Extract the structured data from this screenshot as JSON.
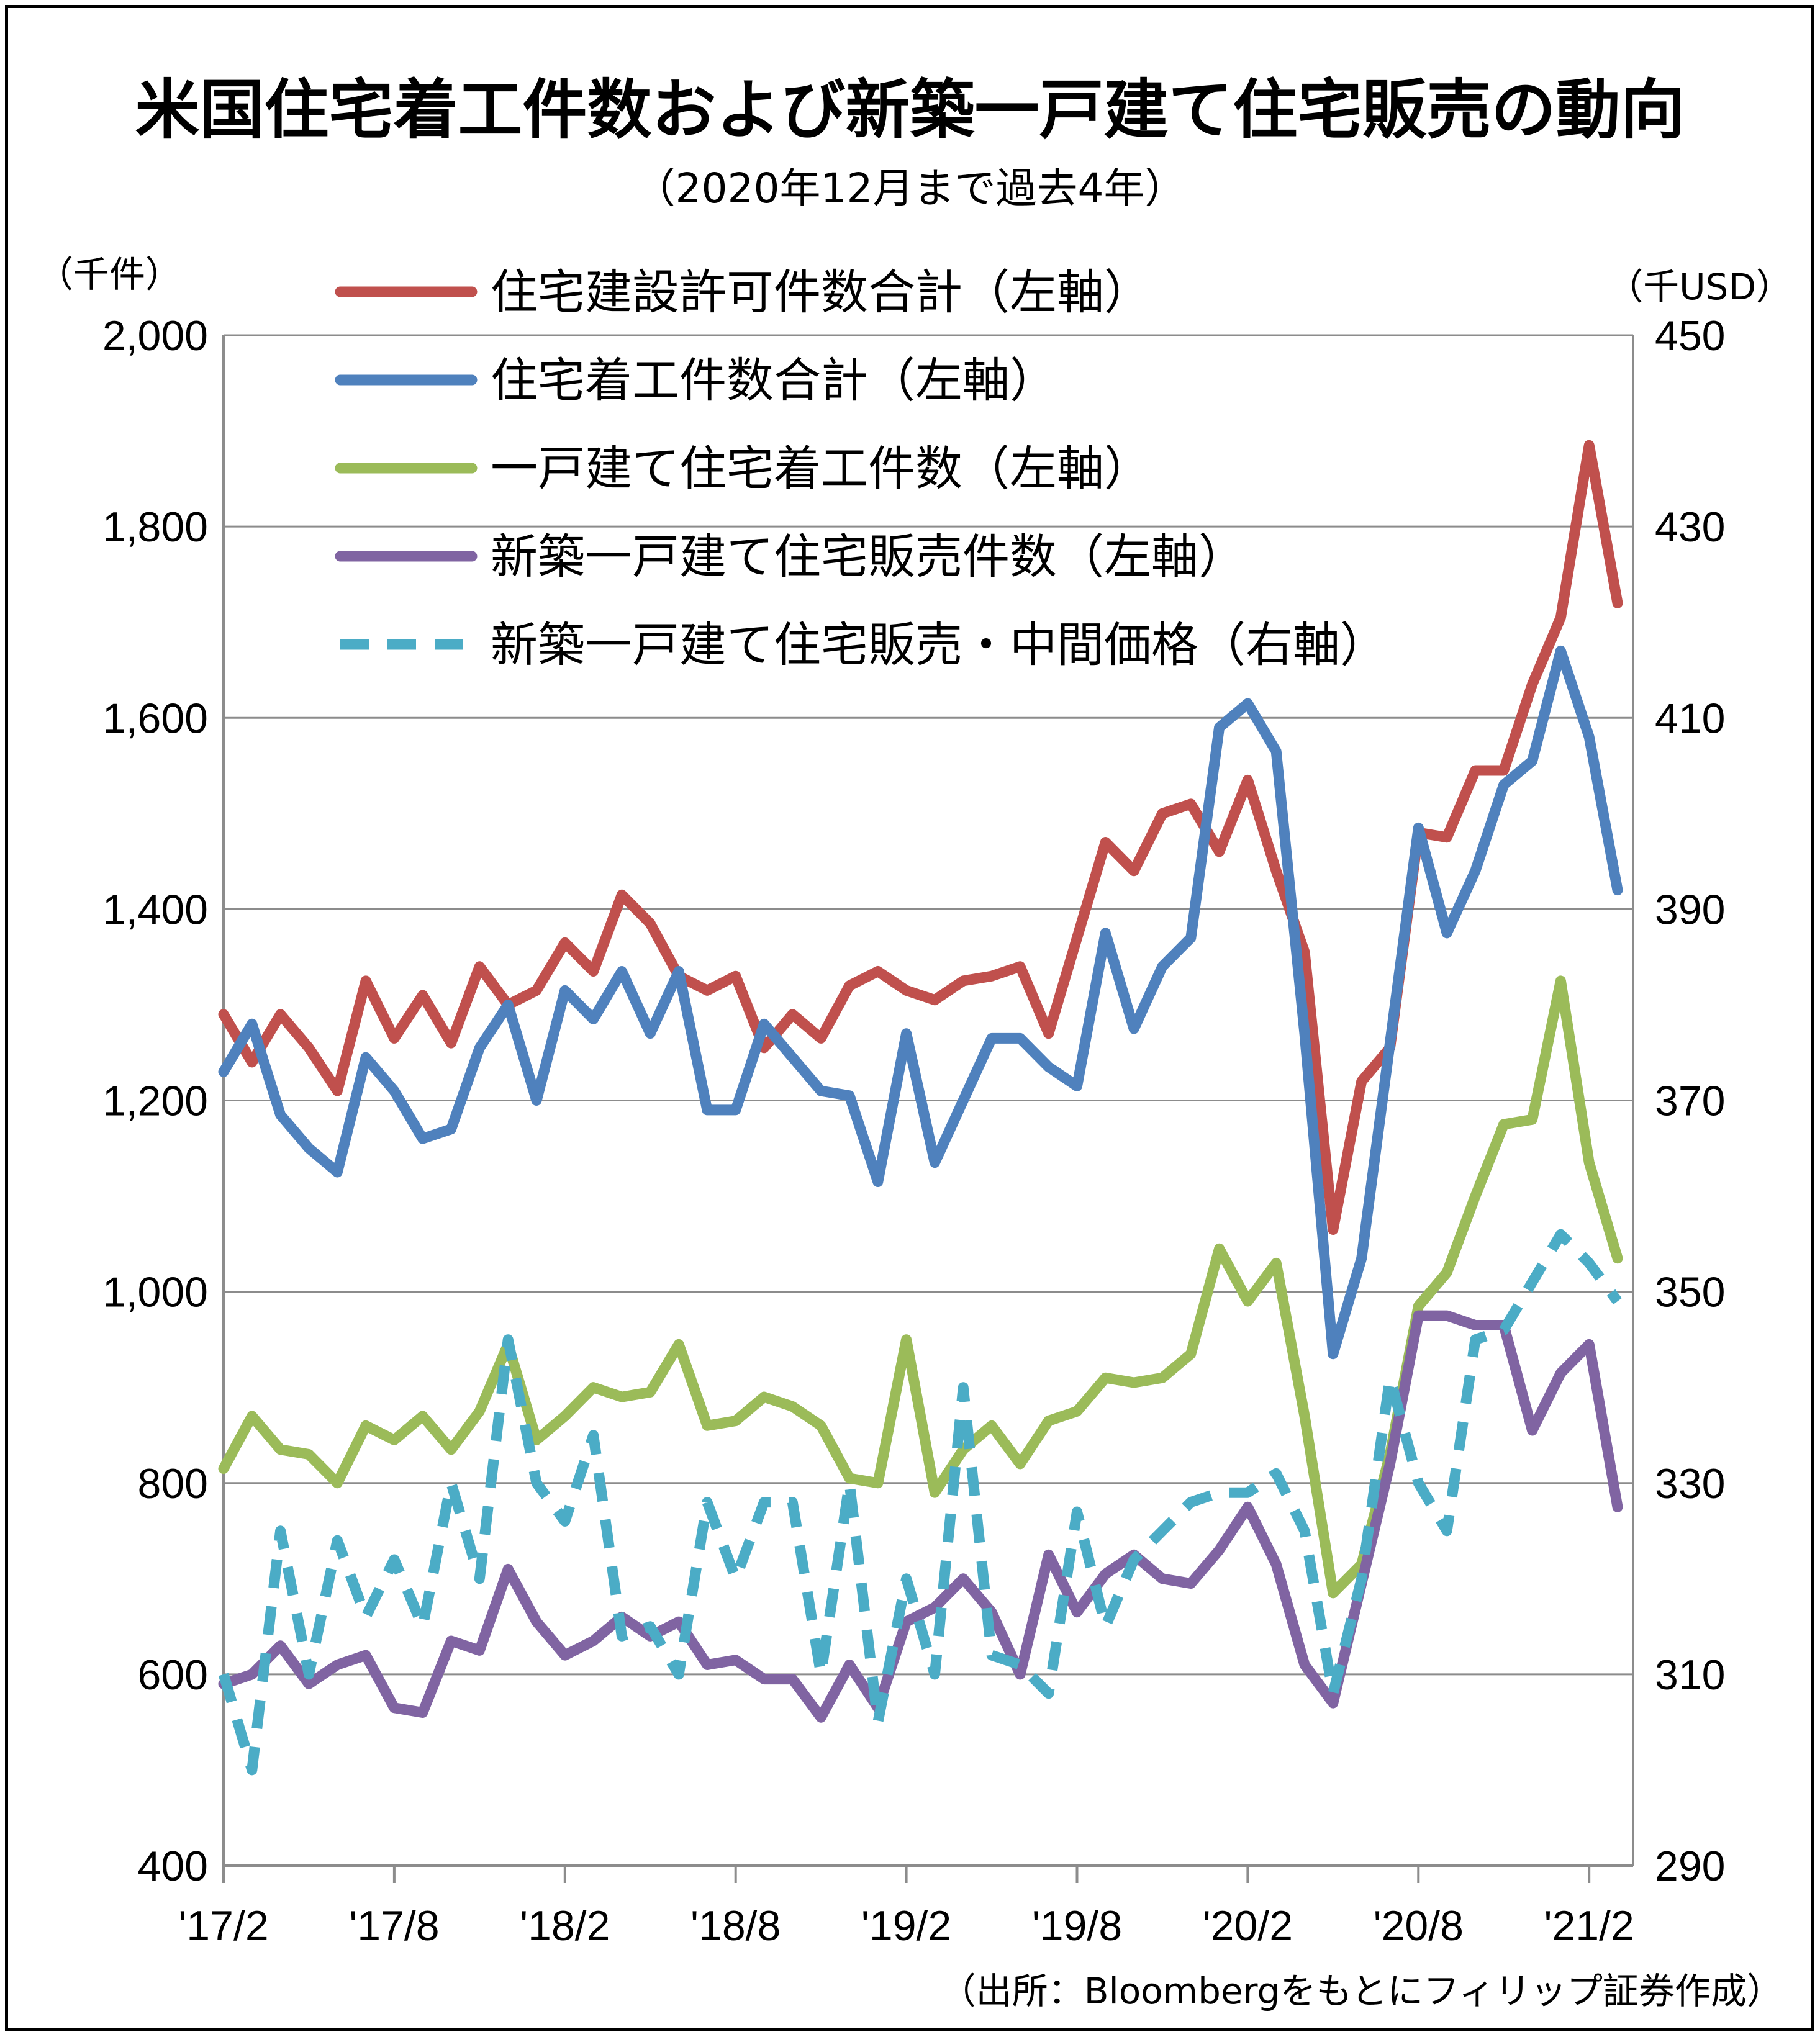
{
  "title": "米国住宅着工件数および新築一戸建て住宅販売の動向",
  "subtitle": "（2020年12月まで過去4年）",
  "source": "（出所：Bloombergをもとにフィリップ証券作成）",
  "chart_data": {
    "type": "line",
    "left_axis": {
      "unit": "（千件）",
      "ylim": [
        400,
        2000
      ],
      "ticks": [
        "2,000",
        "1,800",
        "1,600",
        "1,400",
        "1,200",
        "1,000",
        "800",
        "600",
        "400"
      ],
      "tick_values": [
        2000,
        1800,
        1600,
        1400,
        1200,
        1000,
        800,
        600,
        400
      ]
    },
    "right_axis": {
      "unit": "（千USD）",
      "ylim": [
        290,
        450
      ],
      "ticks": [
        "450",
        "430",
        "410",
        "390",
        "370",
        "350",
        "330",
        "310",
        "290"
      ],
      "tick_values": [
        450,
        430,
        410,
        390,
        370,
        350,
        330,
        310,
        290
      ]
    },
    "x_ticks": [
      {
        "label": "'17/2",
        "index": 0
      },
      {
        "label": "'17/8",
        "index": 6
      },
      {
        "label": "'18/2",
        "index": 12
      },
      {
        "label": "'18/8",
        "index": 18
      },
      {
        "label": "'19/2",
        "index": 24
      },
      {
        "label": "'19/8",
        "index": 30
      },
      {
        "label": "'20/2",
        "index": 36
      },
      {
        "label": "'20/8",
        "index": 42
      },
      {
        "label": "'21/2",
        "index": 48
      }
    ],
    "grid": true,
    "legend_position": "top-left-inside",
    "series": [
      {
        "name": "住宅建設許可件数合計（左軸）",
        "axis": "left",
        "color": "#c0504d",
        "dash": false,
        "values": [
          1290,
          1240,
          1290,
          1255,
          1210,
          1325,
          1265,
          1310,
          1260,
          1340,
          1300,
          1315,
          1365,
          1335,
          1415,
          1385,
          1330,
          1315,
          1330,
          1255,
          1290,
          1265,
          1320,
          1335,
          1315,
          1305,
          1325,
          1330,
          1340,
          1270,
          1370,
          1470,
          1440,
          1500,
          1510,
          1460,
          1535,
          1440,
          1355,
          1065,
          1220,
          1255,
          1480,
          1475,
          1545,
          1545,
          1635,
          1705,
          1885,
          1720
        ]
      },
      {
        "name": "住宅着工件数合計（左軸）",
        "axis": "left",
        "color": "#4f81bd",
        "dash": false,
        "values": [
          1230,
          1280,
          1185,
          1150,
          1125,
          1245,
          1210,
          1160,
          1170,
          1255,
          1300,
          1200,
          1315,
          1285,
          1335,
          1270,
          1335,
          1190,
          1190,
          1280,
          1245,
          1210,
          1205,
          1115,
          1270,
          1135,
          1200,
          1265,
          1265,
          1235,
          1215,
          1375,
          1275,
          1340,
          1370,
          1590,
          1615,
          1565,
          1270,
          935,
          1035,
          1260,
          1485,
          1375,
          1440,
          1530,
          1555,
          1670,
          1580,
          1420
        ]
      },
      {
        "name": "一戸建て住宅着工件数（左軸）",
        "axis": "left",
        "color": "#9bbb59",
        "dash": false,
        "values": [
          815,
          870,
          835,
          830,
          800,
          860,
          845,
          870,
          835,
          875,
          945,
          845,
          870,
          900,
          890,
          895,
          945,
          860,
          865,
          890,
          880,
          860,
          805,
          800,
          950,
          790,
          835,
          860,
          820,
          865,
          875,
          910,
          905,
          910,
          935,
          1045,
          990,
          1030,
          870,
          685,
          715,
          830,
          985,
          1020,
          1100,
          1175,
          1180,
          1325,
          1135,
          1035
        ]
      },
      {
        "name": "新築一戸建て住宅販売件数（左軸）",
        "axis": "left",
        "color": "#8064a2",
        "dash": false,
        "values": [
          590,
          600,
          630,
          590,
          610,
          620,
          565,
          560,
          635,
          625,
          710,
          655,
          620,
          635,
          660,
          640,
          655,
          610,
          615,
          595,
          595,
          555,
          610,
          565,
          655,
          670,
          700,
          665,
          600,
          725,
          665,
          705,
          725,
          700,
          695,
          730,
          775,
          715,
          610,
          570,
          695,
          820,
          975,
          975,
          965,
          965,
          855,
          915,
          945,
          775
        ]
      },
      {
        "name": "新築一戸建て住宅販売・中間価格（右軸）",
        "axis": "right",
        "color": "#4bacc6",
        "dash": true,
        "values": [
          310,
          300,
          325,
          310,
          324,
          316,
          322,
          315,
          330,
          320,
          345,
          330,
          326,
          335,
          314,
          315,
          310,
          328,
          320,
          328,
          328,
          310,
          330,
          305,
          320,
          310,
          340,
          312,
          311,
          308,
          327,
          315,
          322,
          325,
          328,
          329,
          329,
          331,
          325,
          308,
          320,
          341,
          330,
          325,
          345,
          346,
          351,
          356,
          353,
          349
        ]
      }
    ]
  }
}
